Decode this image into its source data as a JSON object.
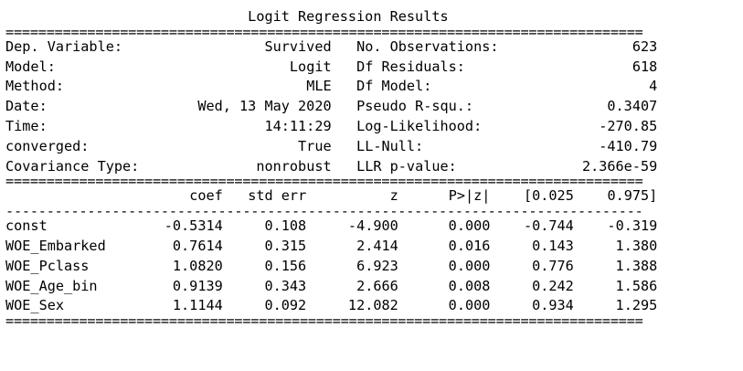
{
  "title": "Logit Regression Results",
  "rules": {
    "double": "==============================================================================",
    "single": "------------------------------------------------------------------------------"
  },
  "summary": {
    "left": [
      {
        "label": "Dep. Variable:",
        "value": "Survived"
      },
      {
        "label": "Model:",
        "value": "Logit"
      },
      {
        "label": "Method:",
        "value": "MLE"
      },
      {
        "label": "Date:",
        "value": "Wed, 13 May 2020"
      },
      {
        "label": "Time:",
        "value": "14:11:29"
      },
      {
        "label": "converged:",
        "value": "True"
      },
      {
        "label": "Covariance Type:",
        "value": "nonrobust"
      }
    ],
    "right": [
      {
        "label": "No. Observations:",
        "value": "623"
      },
      {
        "label": "Df Residuals:",
        "value": "618"
      },
      {
        "label": "Df Model:",
        "value": "4"
      },
      {
        "label": "Pseudo R-squ.:",
        "value": "0.3407"
      },
      {
        "label": "Log-Likelihood:",
        "value": "-270.85"
      },
      {
        "label": "LL-Null:",
        "value": "-410.79"
      },
      {
        "label": "LLR p-value:",
        "value": "2.366e-59"
      }
    ]
  },
  "coef_table": {
    "headers": [
      "",
      "coef",
      "std err",
      "z",
      "P>|z|",
      "[0.025",
      "0.975]"
    ],
    "rows": [
      [
        "const",
        "-0.5314",
        "0.108",
        "-4.900",
        "0.000",
        "-0.744",
        "-0.319"
      ],
      [
        "WOE_Embarked",
        "0.7614",
        "0.315",
        "2.414",
        "0.016",
        "0.143",
        "1.380"
      ],
      [
        "WOE_Pclass",
        "1.0820",
        "0.156",
        "6.923",
        "0.000",
        "0.776",
        "1.388"
      ],
      [
        "WOE_Age_bin",
        "0.9139",
        "0.343",
        "2.666",
        "0.008",
        "0.242",
        "1.586"
      ],
      [
        "WOE_Sex",
        "1.1144",
        "0.092",
        "12.082",
        "0.000",
        "0.934",
        "1.295"
      ]
    ]
  }
}
